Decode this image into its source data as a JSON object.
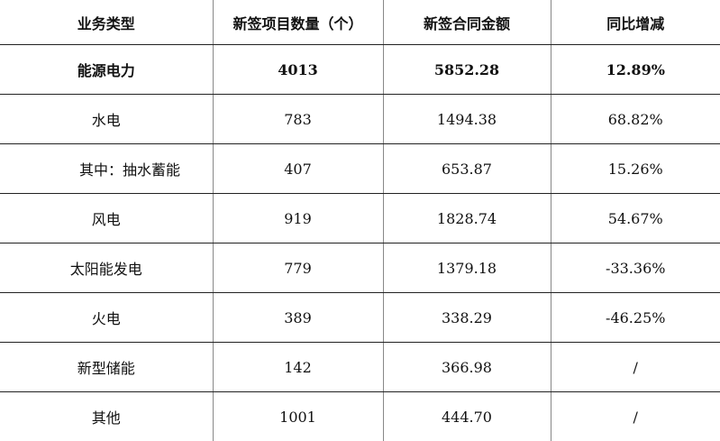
{
  "table": {
    "headers": [
      "业务类型",
      "新签项目数量（个）",
      "新签合同金额",
      "同比增减"
    ],
    "rows": [
      {
        "type": "能源电力",
        "count": "4013",
        "amount": "5852.28",
        "yoy": "12.89%",
        "bold": true
      },
      {
        "type": "水电",
        "count": "783",
        "amount": "1494.38",
        "yoy": "68.82%"
      },
      {
        "type": "其中：抽水蓄能",
        "count": "407",
        "amount": "653.87",
        "yoy": "15.26%",
        "sub": true
      },
      {
        "type": "风电",
        "count": "919",
        "amount": "1828.74",
        "yoy": "54.67%"
      },
      {
        "type": "太阳能发电",
        "count": "779",
        "amount": "1379.18",
        "yoy": "-33.36%"
      },
      {
        "type": "火电",
        "count": "389",
        "amount": "338.29",
        "yoy": "-46.25%"
      },
      {
        "type": "新型储能",
        "count": "142",
        "amount": "366.98",
        "yoy": "/"
      },
      {
        "type": "其他",
        "count": "1001",
        "amount": "444.70",
        "yoy": "/"
      }
    ]
  }
}
